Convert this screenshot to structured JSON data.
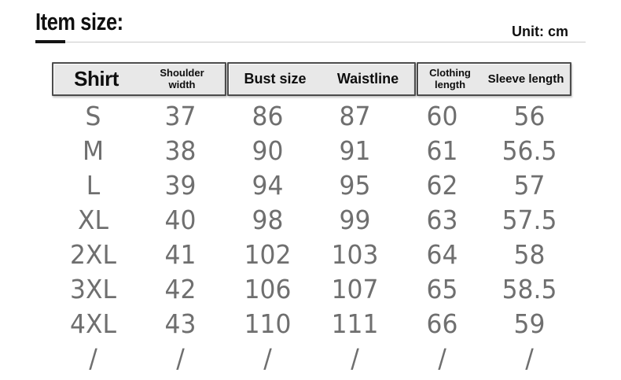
{
  "page": {
    "title": "Item size:",
    "unit": "Unit: cm"
  },
  "table": {
    "headers": [
      "Shirt",
      "Shoulder width",
      "Bust size",
      "Waistline",
      "Clothing length",
      "Sleeve length"
    ],
    "rows": [
      [
        "S",
        "37",
        "86",
        "87",
        "60",
        "56"
      ],
      [
        "M",
        "38",
        "90",
        "91",
        "61",
        "56.5"
      ],
      [
        "L",
        "39",
        "94",
        "95",
        "62",
        "57"
      ],
      [
        "XL",
        "40",
        "98",
        "99",
        "63",
        "57.5"
      ],
      [
        "2XL",
        "41",
        "102",
        "103",
        "64",
        "58"
      ],
      [
        "3XL",
        "42",
        "106",
        "107",
        "65",
        "58.5"
      ],
      [
        "4XL",
        "43",
        "110",
        "111",
        "66",
        "59"
      ],
      [
        "/",
        "/",
        "/",
        "/",
        "/",
        "/"
      ]
    ]
  },
  "colors": {
    "header_background": "#e8e8e8",
    "header_border": "#4c4c4c",
    "header_text": "#0e0e0e",
    "body_text": "#6f6f6f",
    "title_text": "#101010",
    "divider_gray": "#cbcbcb",
    "divider_accent_black": "#141414"
  }
}
